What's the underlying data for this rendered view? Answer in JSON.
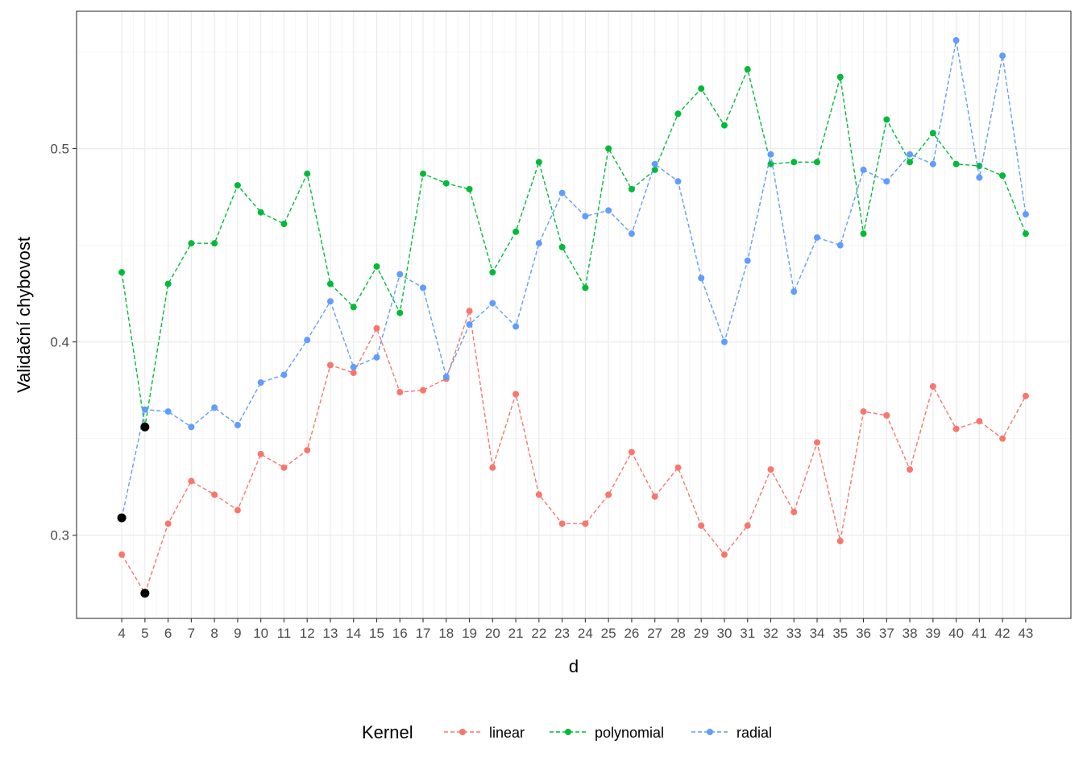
{
  "chart_data": {
    "type": "line",
    "title": "",
    "xlabel": "d",
    "ylabel": "Validační chybovost",
    "legend_title": "Kernel",
    "legend_position": "bottom",
    "grid": true,
    "x": [
      4,
      5,
      6,
      7,
      8,
      9,
      10,
      11,
      12,
      13,
      14,
      15,
      16,
      17,
      18,
      19,
      20,
      21,
      22,
      23,
      24,
      25,
      26,
      27,
      28,
      29,
      30,
      31,
      32,
      33,
      34,
      35,
      36,
      37,
      38,
      39,
      40,
      41,
      42,
      43
    ],
    "xlim": [
      2.05,
      44.95
    ],
    "ylim": [
      0.257,
      0.571
    ],
    "y_ticks": [
      0.3,
      0.4,
      0.5
    ],
    "y_tick_labels": [
      "0.3",
      "0.4",
      "0.5"
    ],
    "series": [
      {
        "name": "linear",
        "color": "#F8766D",
        "values": [
          0.29,
          0.27,
          0.306,
          0.328,
          0.321,
          0.313,
          0.342,
          0.335,
          0.344,
          0.388,
          0.384,
          0.407,
          0.374,
          0.375,
          0.381,
          0.416,
          0.335,
          0.373,
          0.321,
          0.306,
          0.306,
          0.321,
          0.343,
          0.32,
          0.335,
          0.305,
          0.29,
          0.305,
          0.334,
          0.312,
          0.348,
          0.297,
          0.364,
          0.362,
          0.334,
          0.377,
          0.355,
          0.359,
          0.35,
          0.372
        ]
      },
      {
        "name": "polynomial",
        "color": "#00BA38",
        "values": [
          0.436,
          0.356,
          0.43,
          0.451,
          0.451,
          0.481,
          0.467,
          0.461,
          0.487,
          0.43,
          0.418,
          0.439,
          0.415,
          0.487,
          0.482,
          0.479,
          0.436,
          0.457,
          0.493,
          0.449,
          0.428,
          0.5,
          0.479,
          0.489,
          0.518,
          0.531,
          0.512,
          0.541,
          0.492,
          0.493,
          0.493,
          0.537,
          0.456,
          0.515,
          0.493,
          0.508,
          0.492,
          0.491,
          0.486,
          0.456
        ]
      },
      {
        "name": "radial",
        "color": "#619CFF",
        "values": [
          0.309,
          0.365,
          0.364,
          0.356,
          0.366,
          0.357,
          0.379,
          0.383,
          0.401,
          0.421,
          0.387,
          0.392,
          0.435,
          0.428,
          0.382,
          0.409,
          0.42,
          0.408,
          0.451,
          0.477,
          0.465,
          0.468,
          0.456,
          0.492,
          0.483,
          0.433,
          0.4,
          0.442,
          0.497,
          0.426,
          0.454,
          0.45,
          0.489,
          0.483,
          0.497,
          0.492,
          0.556,
          0.485,
          0.548,
          0.466
        ]
      }
    ],
    "highlighted_points": [
      {
        "x": 4,
        "y": 0.309
      },
      {
        "x": 5,
        "y": 0.356
      },
      {
        "x": 5,
        "y": 0.27
      }
    ]
  }
}
